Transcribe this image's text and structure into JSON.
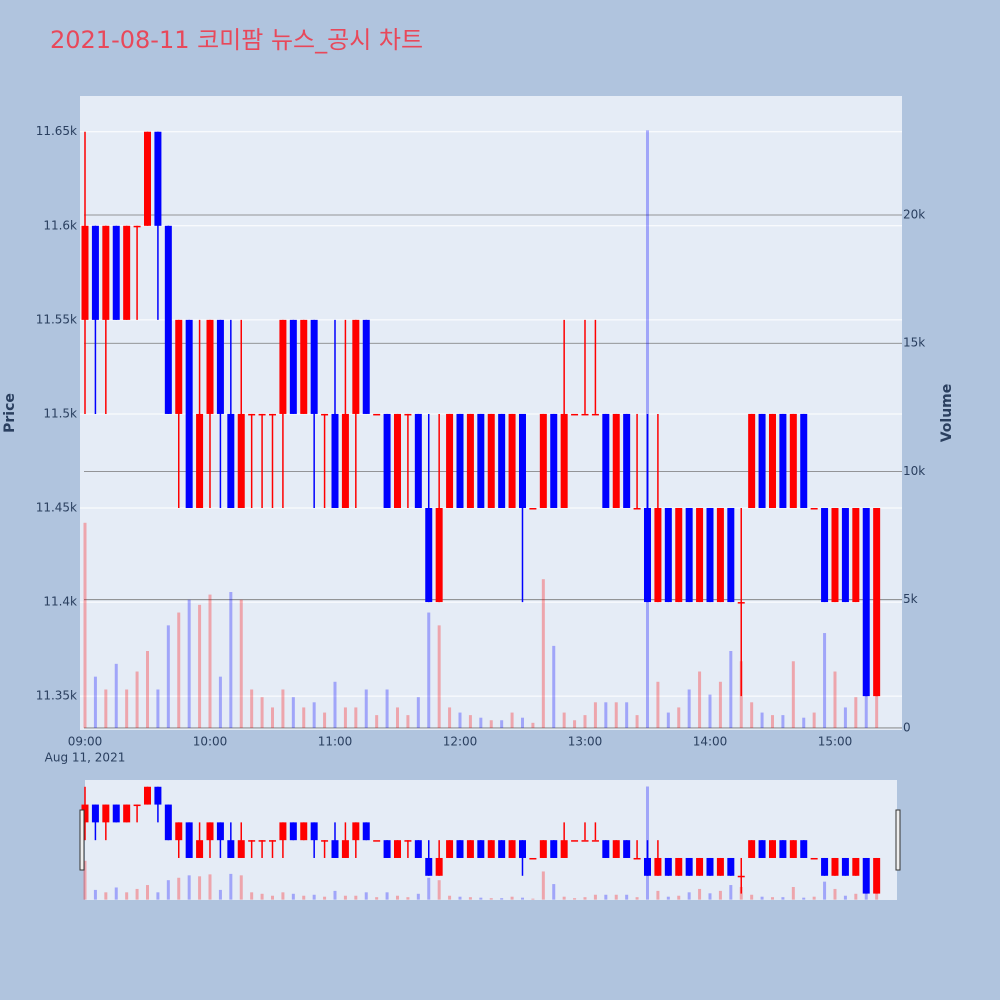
{
  "chart_data": {
    "type": "candlestick",
    "title": "2021-08-11 코미팜 뉴스_공시 차트",
    "y_label": "Price",
    "y2_label": "Volume",
    "x_sublabel": "Aug 11, 2021",
    "up_color": "#ff0000",
    "down_color": "#0000ff",
    "x": [
      "2021-08-11T09:00",
      "2021-08-11T09:05",
      "2021-08-11T09:10",
      "2021-08-11T09:15",
      "2021-08-11T09:20",
      "2021-08-11T09:25",
      "2021-08-11T09:30",
      "2021-08-11T09:35",
      "2021-08-11T09:40",
      "2021-08-11T09:45",
      "2021-08-11T09:50",
      "2021-08-11T09:55",
      "2021-08-11T10:00",
      "2021-08-11T10:05",
      "2021-08-11T10:10",
      "2021-08-11T10:15",
      "2021-08-11T10:20",
      "2021-08-11T10:25",
      "2021-08-11T10:30",
      "2021-08-11T10:35",
      "2021-08-11T10:40",
      "2021-08-11T10:45",
      "2021-08-11T10:50",
      "2021-08-11T10:55",
      "2021-08-11T11:00",
      "2021-08-11T11:05",
      "2021-08-11T11:10",
      "2021-08-11T11:15",
      "2021-08-11T11:20",
      "2021-08-11T11:25",
      "2021-08-11T11:30",
      "2021-08-11T11:35",
      "2021-08-11T11:40",
      "2021-08-11T11:45",
      "2021-08-11T11:50",
      "2021-08-11T11:55",
      "2021-08-11T12:00",
      "2021-08-11T12:05",
      "2021-08-11T12:10",
      "2021-08-11T12:15",
      "2021-08-11T12:20",
      "2021-08-11T12:25",
      "2021-08-11T12:30",
      "2021-08-11T12:35",
      "2021-08-11T12:40",
      "2021-08-11T12:45",
      "2021-08-11T12:50",
      "2021-08-11T12:55",
      "2021-08-11T13:00",
      "2021-08-11T13:05",
      "2021-08-11T13:10",
      "2021-08-11T13:15",
      "2021-08-11T13:20",
      "2021-08-11T13:25",
      "2021-08-11T13:30",
      "2021-08-11T13:35",
      "2021-08-11T13:40",
      "2021-08-11T13:45",
      "2021-08-11T13:50",
      "2021-08-11T13:55",
      "2021-08-11T14:00",
      "2021-08-11T14:05",
      "2021-08-11T14:10",
      "2021-08-11T14:15",
      "2021-08-11T14:20",
      "2021-08-11T14:25",
      "2021-08-11T14:30",
      "2021-08-11T14:35",
      "2021-08-11T14:40",
      "2021-08-11T14:45",
      "2021-08-11T14:50",
      "2021-08-11T14:55",
      "2021-08-11T15:00",
      "2021-08-11T15:05",
      "2021-08-11T15:10",
      "2021-08-11T15:15",
      "2021-08-11T15:20"
    ],
    "open": [
      11550,
      11600,
      11550,
      11600,
      11550,
      11600,
      11600,
      11650,
      11600,
      11500,
      11550,
      11450,
      11500,
      11550,
      11500,
      11450,
      11500,
      11500,
      11500,
      11500,
      11550,
      11500,
      11550,
      11500,
      11500,
      11450,
      11500,
      11550,
      11500,
      11500,
      11450,
      11500,
      11500,
      11450,
      11400,
      11450,
      11500,
      11450,
      11500,
      11450,
      11500,
      11450,
      11500,
      11450,
      11450,
      11500,
      11450,
      11500,
      11500,
      11500,
      11500,
      11450,
      11500,
      11450,
      11450,
      11400,
      11450,
      11400,
      11450,
      11400,
      11450,
      11400,
      11450,
      11400,
      11450,
      11500,
      11450,
      11500,
      11450,
      11500,
      11450,
      11450,
      11400,
      11450,
      11400,
      11450,
      11350
    ],
    "high": [
      11650,
      11600,
      11600,
      11600,
      11600,
      11600,
      11650,
      11650,
      11600,
      11550,
      11550,
      11550,
      11550,
      11550,
      11550,
      11550,
      11500,
      11500,
      11500,
      11550,
      11550,
      11550,
      11550,
      11500,
      11550,
      11550,
      11550,
      11550,
      11500,
      11500,
      11500,
      11500,
      11500,
      11500,
      11500,
      11500,
      11500,
      11500,
      11500,
      11500,
      11500,
      11500,
      11500,
      11450,
      11500,
      11500,
      11550,
      11500,
      11550,
      11550,
      11500,
      11500,
      11500,
      11500,
      11500,
      11500,
      11450,
      11450,
      11450,
      11450,
      11450,
      11450,
      11450,
      11450,
      11500,
      11500,
      11500,
      11500,
      11500,
      11500,
      11450,
      11450,
      11450,
      11450,
      11450,
      11450,
      11450
    ],
    "low": [
      11500,
      11500,
      11500,
      11550,
      11550,
      11550,
      11600,
      11550,
      11500,
      11450,
      11450,
      11450,
      11450,
      11450,
      11450,
      11450,
      11450,
      11450,
      11450,
      11450,
      11500,
      11500,
      11450,
      11450,
      11450,
      11450,
      11450,
      11500,
      11500,
      11450,
      11450,
      11450,
      11450,
      11400,
      11400,
      11450,
      11450,
      11450,
      11450,
      11450,
      11450,
      11450,
      11400,
      11450,
      11450,
      11450,
      11450,
      11500,
      11500,
      11500,
      11450,
      11450,
      11450,
      11450,
      11400,
      11400,
      11400,
      11400,
      11400,
      11400,
      11400,
      11400,
      11400,
      11350,
      11450,
      11450,
      11450,
      11450,
      11450,
      11450,
      11450,
      11400,
      11400,
      11400,
      11400,
      11350,
      11350
    ],
    "close": [
      11600,
      11550,
      11600,
      11550,
      11600,
      11600,
      11650,
      11600,
      11500,
      11550,
      11450,
      11500,
      11550,
      11500,
      11450,
      11500,
      11500,
      11500,
      11500,
      11550,
      11500,
      11550,
      11500,
      11500,
      11450,
      11500,
      11550,
      11500,
      11500,
      11450,
      11500,
      11500,
      11450,
      11400,
      11450,
      11500,
      11450,
      11500,
      11450,
      11500,
      11450,
      11500,
      11450,
      11450,
      11500,
      11450,
      11500,
      11500,
      11500,
      11500,
      11450,
      11500,
      11450,
      11450,
      11400,
      11450,
      11400,
      11450,
      11400,
      11450,
      11400,
      11450,
      11400,
      11400,
      11500,
      11450,
      11500,
      11450,
      11500,
      11450,
      11450,
      11400,
      11450,
      11400,
      11450,
      11350,
      11450
    ],
    "volume": [
      8000,
      2000,
      1500,
      2500,
      1500,
      2200,
      3000,
      1500,
      4000,
      4500,
      5000,
      4800,
      5200,
      2000,
      5300,
      5000,
      1500,
      1200,
      800,
      1500,
      1200,
      800,
      1000,
      600,
      1800,
      800,
      800,
      1500,
      500,
      1500,
      800,
      500,
      1200,
      4500,
      4000,
      800,
      600,
      500,
      400,
      300,
      300,
      600,
      400,
      200,
      5800,
      3200,
      600,
      300,
      500,
      1000,
      1000,
      1000,
      1000,
      500,
      23300,
      1800,
      600,
      800,
      1500,
      2200,
      1300,
      1800,
      3000,
      2600,
      1000,
      600,
      500,
      500,
      2600,
      400,
      600,
      3700,
      2200,
      800,
      1200,
      1800,
      1500
    ],
    "xlim": [
      "2021-08-11T08:57:36",
      "2021-08-11T15:32:10"
    ],
    "xticks": [
      {
        "value": "2021-08-11T09:00",
        "label": "09:00"
      },
      {
        "value": "2021-08-11T10:00",
        "label": "10:00"
      },
      {
        "value": "2021-08-11T11:00",
        "label": "11:00"
      },
      {
        "value": "2021-08-11T12:00",
        "label": "12:00"
      },
      {
        "value": "2021-08-11T13:00",
        "label": "13:00"
      },
      {
        "value": "2021-08-11T14:00",
        "label": "14:00"
      },
      {
        "value": "2021-08-11T15:00",
        "label": "15:00"
      }
    ],
    "ylim": [
      11332,
      11669
    ],
    "yticks": [
      {
        "value": 11350,
        "label": "11.35k"
      },
      {
        "value": 11400,
        "label": "11.4k"
      },
      {
        "value": 11450,
        "label": "11.45k"
      },
      {
        "value": 11500,
        "label": "11.5k"
      },
      {
        "value": 11550,
        "label": "11.55k"
      },
      {
        "value": 11600,
        "label": "11.6k"
      },
      {
        "value": 11650,
        "label": "11.65k"
      }
    ],
    "y2lim": [
      -80,
      24640
    ],
    "y2ticks": [
      0,
      {
        "value": 5000,
        "label": "5k"
      },
      {
        "value": 10000,
        "label": "10k"
      },
      {
        "value": 15000,
        "label": "15k"
      },
      {
        "value": 20000,
        "label": "20k"
      }
    ],
    "grid": true
  }
}
